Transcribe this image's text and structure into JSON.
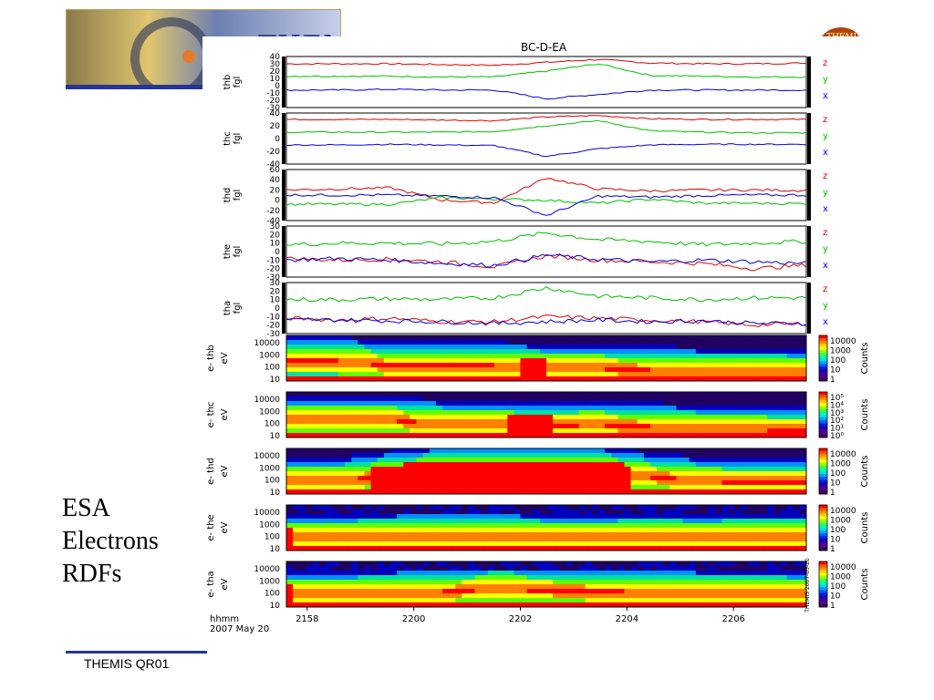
{
  "slide": {
    "banner_title": "THEMIS",
    "side_text": [
      "ESA",
      "Electrons",
      "RDFs"
    ],
    "footer": "THEMIS QR01"
  },
  "chart_data": {
    "type": "line",
    "title": "BC-D-EA",
    "x_ticks": [
      "2158",
      "2200",
      "2202",
      "2204",
      "2206"
    ],
    "x_label_lines": [
      "hhmm",
      "2007 May 20"
    ],
    "x_range": [
      "2157:00",
      "2207:40"
    ],
    "fgm_panels": [
      {
        "label_lines": [
          "thb",
          "fgl"
        ],
        "ylim": [
          -30,
          40
        ],
        "yticks": [
          "40",
          "30",
          "20",
          "10",
          "0",
          "-10",
          "-20",
          "-30"
        ],
        "series": [
          {
            "name": "z",
            "color": "#e00000",
            "values": [
              30,
              30,
              30,
              29,
              28,
              32,
              36,
              31,
              30,
              30,
              31
            ]
          },
          {
            "name": "y",
            "color": "#00c000",
            "values": [
              13,
              13,
              13,
              12,
              12,
              20,
              30,
              14,
              13,
              12,
              12
            ]
          },
          {
            "name": "x",
            "color": "#0000e0",
            "values": [
              -6,
              -6,
              -5,
              -6,
              -6,
              -18,
              -12,
              -6,
              -6,
              -6,
              -6
            ]
          }
        ]
      },
      {
        "label_lines": [
          "thc",
          "fgl"
        ],
        "ylim": [
          -40,
          40
        ],
        "yticks": [
          "40",
          "20",
          "0",
          "-20",
          "-40"
        ],
        "series": [
          {
            "name": "z",
            "color": "#e00000",
            "values": [
              30,
              30,
              30,
              29,
              28,
              34,
              36,
              31,
              30,
              30,
              30
            ]
          },
          {
            "name": "y",
            "color": "#00c000",
            "values": [
              10,
              10,
              10,
              10,
              11,
              20,
              28,
              12,
              10,
              9,
              9
            ]
          },
          {
            "name": "x",
            "color": "#0000e0",
            "values": [
              -10,
              -10,
              -9,
              -10,
              -11,
              -28,
              -16,
              -10,
              -9,
              -9,
              -9
            ]
          }
        ]
      },
      {
        "label_lines": [
          "thd",
          "fgl"
        ],
        "ylim": [
          -40,
          60
        ],
        "yticks": [
          "60",
          "40",
          "20",
          "0",
          "-20",
          "-40"
        ],
        "series": [
          {
            "name": "z",
            "color": "#e00000",
            "values": [
              20,
              22,
              24,
              0,
              -5,
              44,
              22,
              18,
              20,
              20,
              19
            ]
          },
          {
            "name": "y",
            "color": "#00c000",
            "values": [
              -8,
              -8,
              -8,
              5,
              2,
              0,
              -6,
              2,
              -6,
              -6,
              -7
            ]
          },
          {
            "name": "x",
            "color": "#0000e0",
            "values": [
              10,
              10,
              10,
              8,
              5,
              -30,
              8,
              6,
              9,
              10,
              10
            ]
          }
        ]
      },
      {
        "label_lines": [
          "the",
          "fgl"
        ],
        "ylim": [
          -30,
          30
        ],
        "yticks": [
          "30",
          "20",
          "10",
          "0",
          "-10",
          "-20",
          "-30"
        ],
        "series": [
          {
            "name": "z",
            "color": "#e00000",
            "values": [
              -8,
              -10,
              -9,
              -12,
              -18,
              -5,
              -10,
              -12,
              -14,
              -20,
              -16
            ]
          },
          {
            "name": "y",
            "color": "#00c000",
            "values": [
              8,
              10,
              10,
              9,
              12,
              22,
              14,
              12,
              8,
              10,
              12
            ]
          },
          {
            "name": "x",
            "color": "#0000e0",
            "values": [
              -10,
              -8,
              -10,
              -14,
              -16,
              -4,
              -9,
              -12,
              -10,
              -12,
              -14
            ]
          }
        ]
      },
      {
        "label_lines": [
          "tha",
          "fgl"
        ],
        "ylim": [
          -30,
          30
        ],
        "yticks": [
          "30",
          "20",
          "10",
          "0",
          "-10",
          "-20",
          "-30"
        ],
        "series": [
          {
            "name": "z",
            "color": "#e00000",
            "values": [
              -12,
              -14,
              -12,
              -16,
              -16,
              -10,
              -12,
              -14,
              -16,
              -20,
              -18
            ]
          },
          {
            "name": "y",
            "color": "#00c000",
            "values": [
              10,
              10,
              11,
              10,
              12,
              24,
              14,
              12,
              10,
              12,
              12
            ]
          },
          {
            "name": "x",
            "color": "#0000e0",
            "values": [
              -14,
              -14,
              -15,
              -16,
              -18,
              -16,
              -14,
              -16,
              -15,
              -18,
              -18
            ]
          }
        ]
      }
    ],
    "esa_panels": [
      {
        "label_lines": [
          "e- thb",
          "eV"
        ],
        "yticks": [
          "10000",
          "1000",
          "100",
          "10"
        ],
        "cbar_ticks": [
          "10000",
          "1000",
          "100",
          "10",
          "1"
        ],
        "cbar_label": "Counts",
        "peak_energy_levels": [
          0.45,
          0.45,
          0.35,
          0.35,
          0.35,
          0.3,
          0.3,
          0.25,
          0.22,
          0.22,
          0.2
        ],
        "hot_patch": {
          "x": [
            0.44,
            0.49
          ]
        }
      },
      {
        "label_lines": [
          "e- thc",
          "eV"
        ],
        "yticks": [
          "10000",
          "1000",
          "100",
          "10"
        ],
        "cbar_ticks": [
          "10⁵",
          "10⁴",
          "10³",
          "10²",
          "10¹",
          "10⁰"
        ],
        "cbar_label": "Counts",
        "peak_energy_levels": [
          0.4,
          0.4,
          0.4,
          0.3,
          0.3,
          0.28,
          0.3,
          0.25,
          0.2,
          0.2,
          0.18
        ],
        "hot_patch": {
          "x": [
            0.42,
            0.5
          ]
        }
      },
      {
        "label_lines": [
          "e- thd",
          "eV"
        ],
        "yticks": [
          "10000",
          "1000",
          "100",
          "10"
        ],
        "cbar_ticks": [
          "10000",
          "1000",
          "100",
          "10",
          "1"
        ],
        "cbar_label": "Counts",
        "peak_energy_levels": [
          0.3,
          0.3,
          0.45,
          0.55,
          0.55,
          0.55,
          0.55,
          0.4,
          0.3,
          0.28,
          0.28
        ],
        "hot_patch": {
          "x": [
            0.16,
            0.66
          ]
        }
      },
      {
        "label_lines": [
          "e- the",
          "eV"
        ],
        "yticks": [
          "10000",
          "1000",
          "100",
          "10"
        ],
        "cbar_ticks": [
          "10000",
          "1000",
          "100",
          "10",
          "1"
        ],
        "cbar_label": "Counts",
        "peak_energy_levels": [
          0.3,
          0.3,
          0.32,
          0.35,
          0.34,
          0.3,
          0.3,
          0.32,
          0.3,
          0.32,
          0.32
        ],
        "hot_patch": {
          "x": [
            0,
            0
          ]
        }
      },
      {
        "label_lines": [
          "e- tha",
          "eV"
        ],
        "yticks": [
          "10000",
          "1000",
          "100",
          "10"
        ],
        "cbar_ticks": [
          "10000",
          "1000",
          "100",
          "10",
          "1"
        ],
        "cbar_label": "Counts",
        "peak_energy_levels": [
          0.3,
          0.3,
          0.32,
          0.35,
          0.42,
          0.38,
          0.36,
          0.34,
          0.32,
          0.32,
          0.3
        ],
        "hot_patch": {
          "x": [
            0,
            0
          ]
        }
      }
    ],
    "side_stamp": "THEMIS 2007-05-20"
  }
}
